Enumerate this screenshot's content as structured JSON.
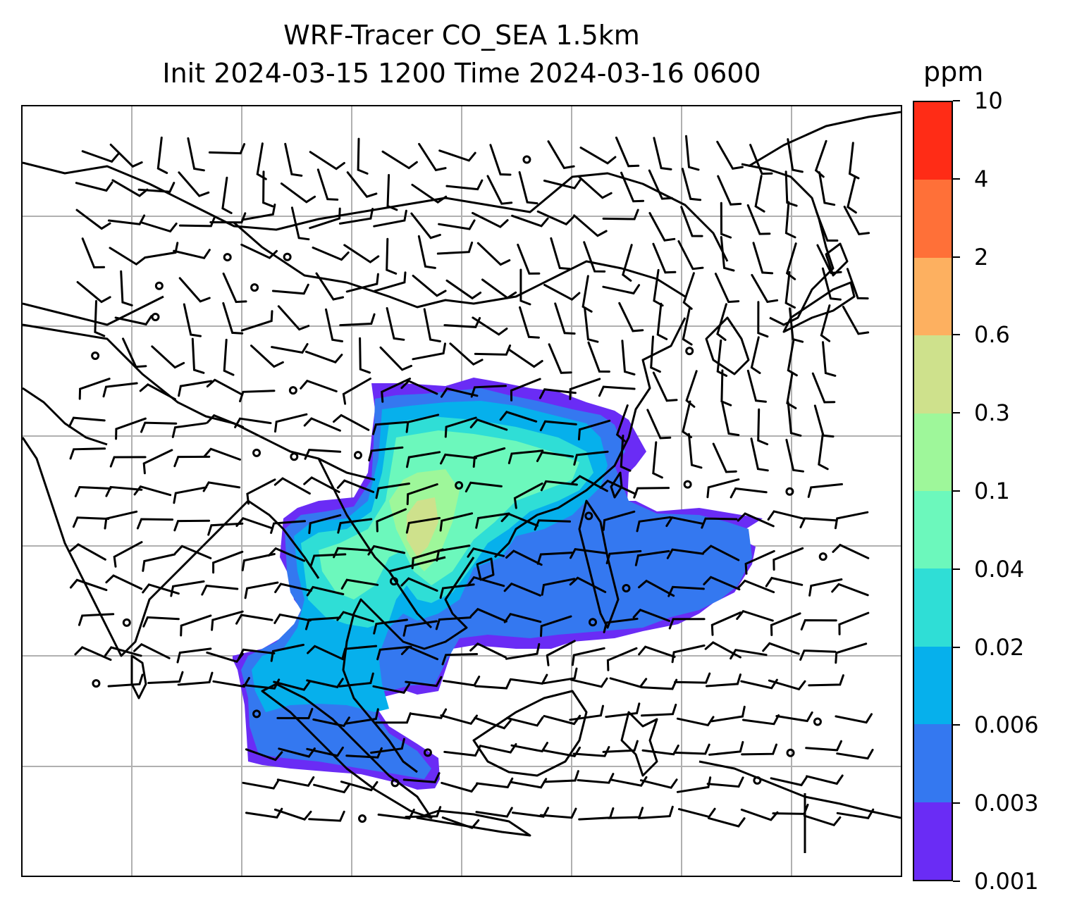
{
  "title": {
    "line1": "WRF-Tracer CO_SEA 1.5km",
    "line2": "Init 2024-03-15 1200 Time 2024-03-16 0600"
  },
  "colorbar": {
    "unit": "ppm",
    "levels": [
      "0.001",
      "0.003",
      "0.006",
      "0.02",
      "0.04",
      "0.1",
      "0.3",
      "0.6",
      "2",
      "4",
      "10"
    ],
    "colors": [
      "#6a2cf5",
      "#3478f0",
      "#06b0ec",
      "#2fded6",
      "#6cf8bc",
      "#9ef79a",
      "#cee18c",
      "#fdb060",
      "#ff7038",
      "#ff2c16"
    ]
  },
  "map": {
    "land_outline_color": "#000000",
    "gridline_color": "#b0b0b0",
    "wind_barb_color": "#000000"
  }
}
